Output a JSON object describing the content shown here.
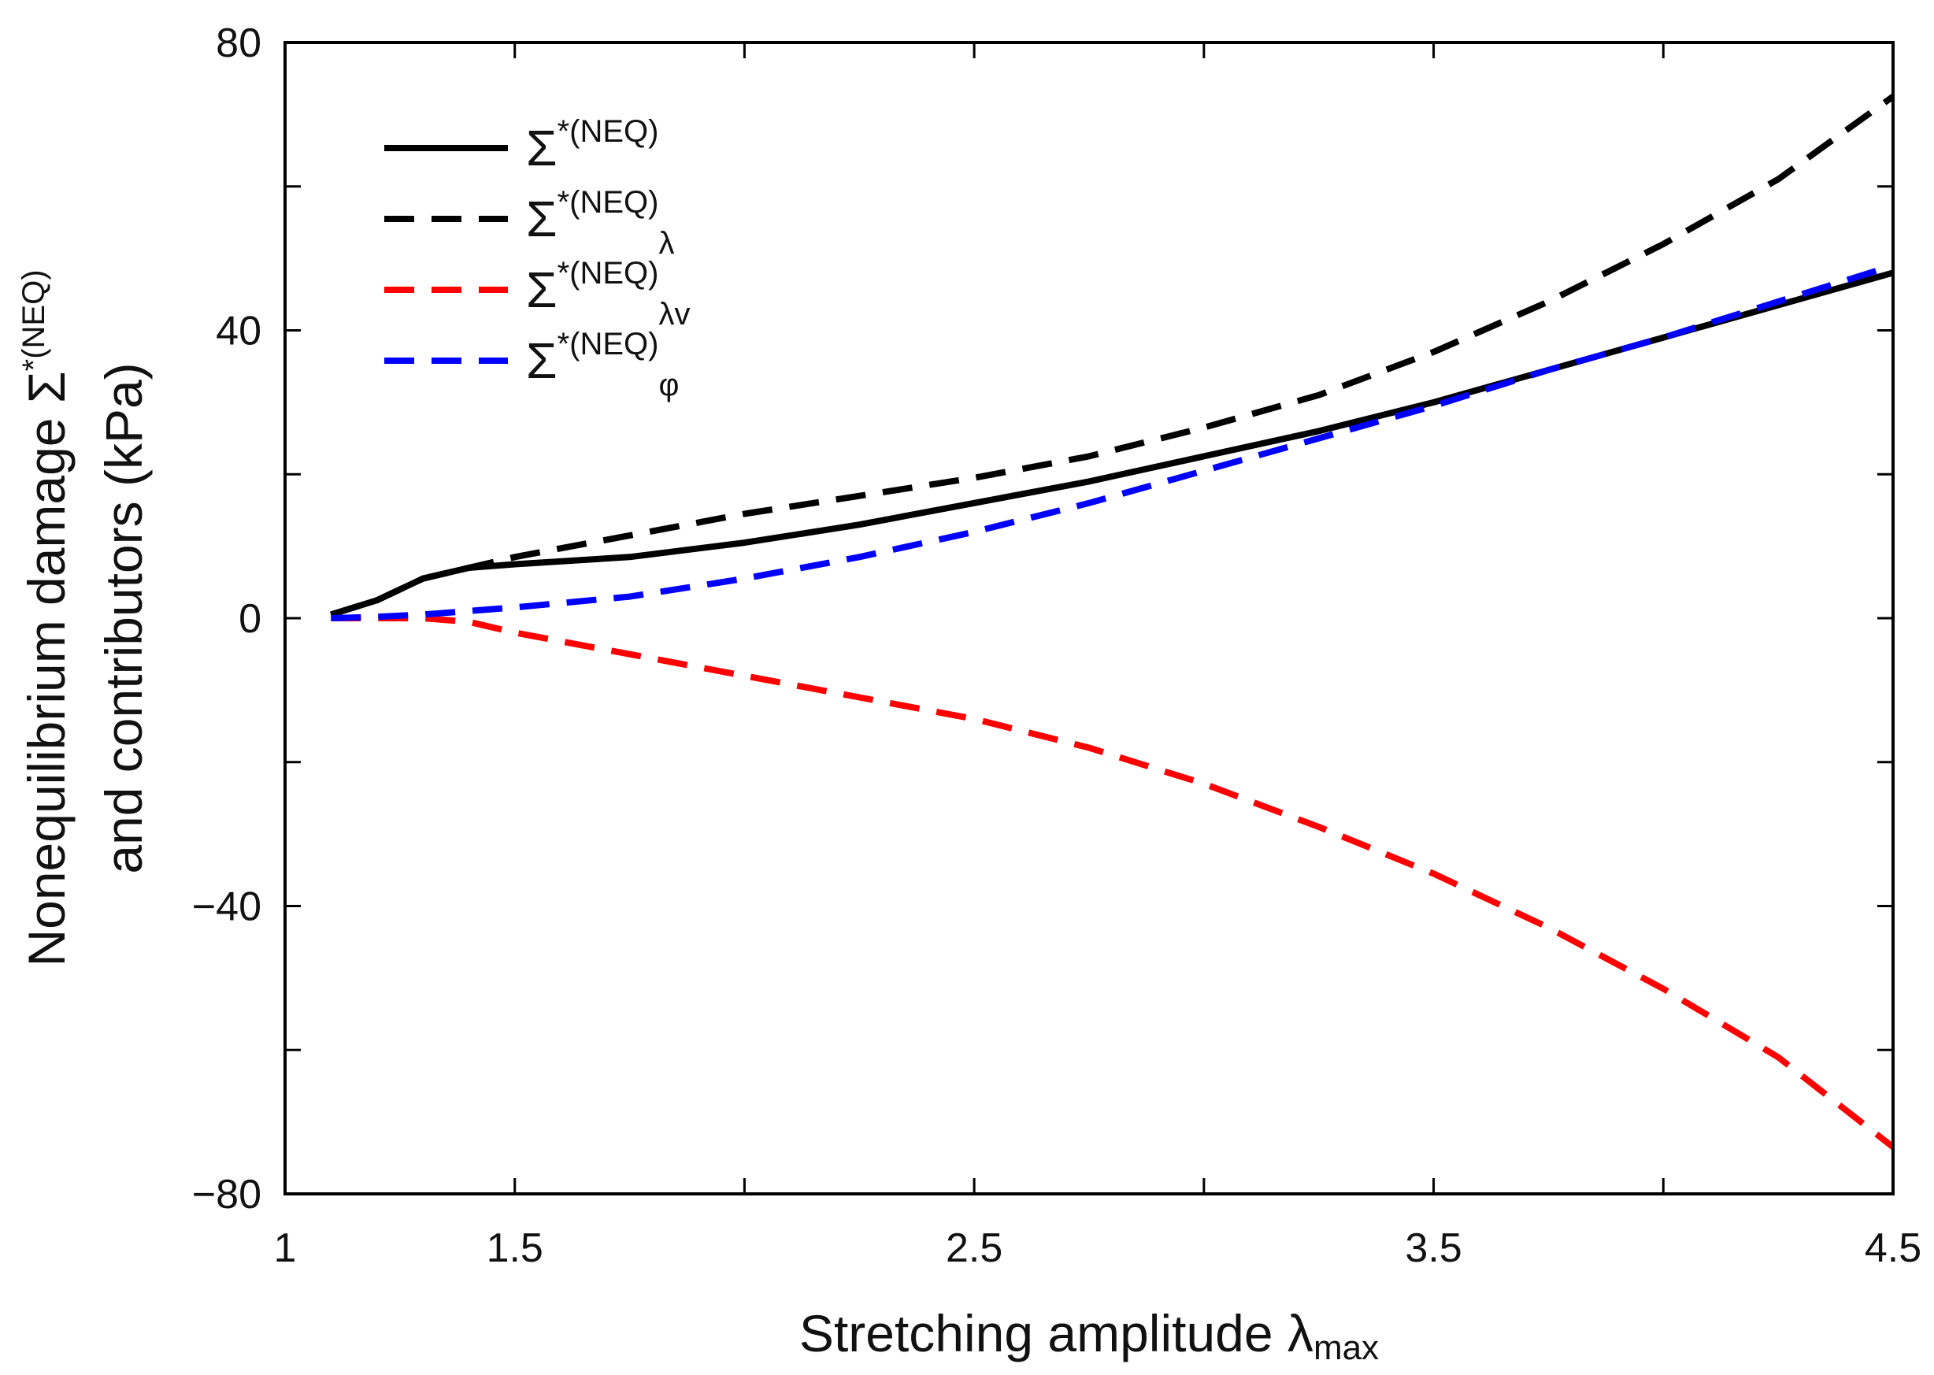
{
  "chart_data": {
    "type": "line",
    "title": "",
    "xlabel": "Stretching amplitude λ",
    "xlabel_sub": "max",
    "ylabel_line1": "Nonequilibrium damage Σ",
    "ylabel_sup": "*(NEQ)",
    "ylabel_line2": "and contributors (kPa)",
    "xlim": [
      1,
      4.5
    ],
    "ylim": [
      -80,
      80
    ],
    "x_major_ticks": [
      1,
      1.5,
      2,
      2.5,
      3,
      3.5,
      4,
      4.5
    ],
    "x_tick_labels": [
      {
        "value": 1,
        "label": "1"
      },
      {
        "value": 1.5,
        "label": "1.5"
      },
      {
        "value": 2.5,
        "label": "2.5"
      },
      {
        "value": 3.5,
        "label": "3.5"
      },
      {
        "value": 4.5,
        "label": "4.5"
      }
    ],
    "y_major_ticks": [
      -80,
      -60,
      -40,
      -20,
      0,
      20,
      40,
      60,
      80
    ],
    "y_tick_labels": [
      {
        "value": 80,
        "label": "80"
      },
      {
        "value": 40,
        "label": "40"
      },
      {
        "value": 0,
        "label": "0"
      },
      {
        "value": -40,
        "label": "−40"
      },
      {
        "value": -80,
        "label": "−80"
      }
    ],
    "grid": false,
    "legend_position": "top-left",
    "x": [
      1.1,
      1.2,
      1.3,
      1.4,
      1.5,
      1.75,
      2.0,
      2.25,
      2.5,
      2.75,
      3.0,
      3.25,
      3.5,
      3.75,
      4.0,
      4.25,
      4.5
    ],
    "series": [
      {
        "name": "Σ*(NEQ)",
        "legend_base": "Σ",
        "legend_sup": "*(NEQ)",
        "legend_sub": "",
        "color": "#000000",
        "dash": "solid",
        "values": [
          0.5,
          2.5,
          5.5,
          7.0,
          7.5,
          8.5,
          10.5,
          13.0,
          16.0,
          19.0,
          22.5,
          26.0,
          30.0,
          34.5,
          39.0,
          43.5,
          48.0
        ]
      },
      {
        "name": "Σ*(NEQ)λ",
        "legend_base": "Σ",
        "legend_sup": "*(NEQ)",
        "legend_sub": "λ",
        "color": "#000000",
        "dash": "dashed",
        "values": [
          0.5,
          2.5,
          5.5,
          7.0,
          8.5,
          11.5,
          14.5,
          17.0,
          19.5,
          22.5,
          26.5,
          31.0,
          37.0,
          44.0,
          52.0,
          61.0,
          72.5
        ]
      },
      {
        "name": "Σ*(NEQ)λv",
        "legend_base": "Σ",
        "legend_sup": "*(NEQ)",
        "legend_sub": "λv",
        "color": "#ff0000",
        "dash": "dashed",
        "values": [
          0.0,
          0.0,
          0.0,
          -0.5,
          -2.0,
          -5.0,
          -8.0,
          -11.0,
          -14.0,
          -18.0,
          -23.0,
          -29.0,
          -35.5,
          -43.0,
          -51.5,
          -61.0,
          -73.5
        ]
      },
      {
        "name": "Σ*(NEQ)φ",
        "legend_base": "Σ",
        "legend_sup": "*(NEQ)",
        "legend_sub": "φ",
        "color": "#0000ff",
        "dash": "dashed",
        "values": [
          0.0,
          0.2,
          0.5,
          1.0,
          1.5,
          3.0,
          5.5,
          8.5,
          12.0,
          16.0,
          20.5,
          25.0,
          29.5,
          34.5,
          39.0,
          44.0,
          49.0
        ]
      }
    ]
  }
}
